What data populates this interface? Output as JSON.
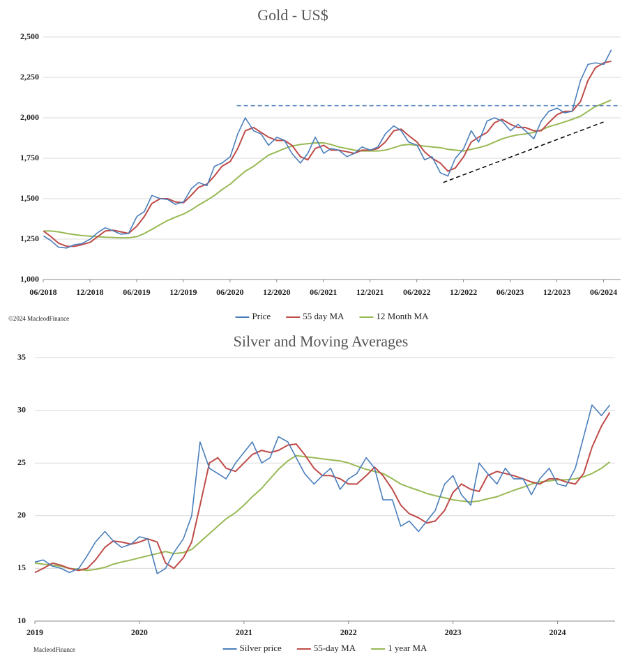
{
  "chart_data": [
    {
      "type": "line",
      "title": "Gold - US$",
      "source": "©2024 MacleodFinance",
      "x": [
        2018.42,
        2018.5,
        2018.58,
        2018.67,
        2018.75,
        2018.83,
        2018.92,
        2019,
        2019.08,
        2019.17,
        2019.25,
        2019.33,
        2019.42,
        2019.5,
        2019.58,
        2019.67,
        2019.75,
        2019.83,
        2019.92,
        2020,
        2020.08,
        2020.17,
        2020.25,
        2020.33,
        2020.42,
        2020.5,
        2020.58,
        2020.67,
        2020.75,
        2020.83,
        2020.92,
        2021,
        2021.08,
        2021.17,
        2021.25,
        2021.33,
        2021.42,
        2021.5,
        2021.58,
        2021.67,
        2021.75,
        2021.83,
        2021.92,
        2022,
        2022.08,
        2022.17,
        2022.25,
        2022.33,
        2022.42,
        2022.5,
        2022.58,
        2022.67,
        2022.75,
        2022.83,
        2022.92,
        2023,
        2023.08,
        2023.17,
        2023.25,
        2023.33,
        2023.42,
        2023.5,
        2023.58,
        2023.67,
        2023.75,
        2023.83,
        2023.92,
        2024,
        2024.08,
        2024.17,
        2024.25,
        2024.33,
        2024.42,
        2024.5
      ],
      "series": [
        {
          "name": "Price",
          "color": "#4a7ebb",
          "values": [
            1270,
            1240,
            1200,
            1195,
            1215,
            1222,
            1250,
            1290,
            1320,
            1300,
            1280,
            1285,
            1390,
            1420,
            1520,
            1500,
            1495,
            1465,
            1480,
            1560,
            1600,
            1580,
            1700,
            1720,
            1760,
            1900,
            2000,
            1920,
            1900,
            1830,
            1880,
            1860,
            1780,
            1720,
            1780,
            1880,
            1780,
            1810,
            1800,
            1760,
            1780,
            1820,
            1800,
            1820,
            1900,
            1950,
            1920,
            1850,
            1830,
            1740,
            1760,
            1660,
            1640,
            1750,
            1810,
            1920,
            1850,
            1980,
            2000,
            1980,
            1920,
            1960,
            1920,
            1870,
            1980,
            2040,
            2060,
            2030,
            2040,
            2230,
            2330,
            2340,
            2330,
            2420
          ]
        },
        {
          "name": "55 day MA",
          "color": "#be4b48",
          "values": [
            1300,
            1265,
            1225,
            1205,
            1205,
            1215,
            1230,
            1265,
            1300,
            1305,
            1295,
            1285,
            1330,
            1390,
            1470,
            1500,
            1500,
            1480,
            1475,
            1520,
            1570,
            1590,
            1640,
            1700,
            1730,
            1810,
            1920,
            1940,
            1910,
            1880,
            1860,
            1860,
            1830,
            1760,
            1740,
            1810,
            1830,
            1800,
            1800,
            1790,
            1780,
            1800,
            1800,
            1810,
            1850,
            1920,
            1930,
            1890,
            1850,
            1790,
            1750,
            1720,
            1670,
            1690,
            1760,
            1850,
            1880,
            1910,
            1970,
            1990,
            1960,
            1940,
            1940,
            1920,
            1920,
            1970,
            2020,
            2040,
            2040,
            2100,
            2230,
            2310,
            2340,
            2350
          ]
        },
        {
          "name": "12 Month MA",
          "color": "#98b954",
          "values": [
            1300,
            1300,
            1295,
            1285,
            1278,
            1272,
            1268,
            1265,
            1262,
            1260,
            1258,
            1258,
            1265,
            1285,
            1310,
            1340,
            1365,
            1385,
            1405,
            1430,
            1460,
            1490,
            1520,
            1555,
            1590,
            1630,
            1670,
            1700,
            1735,
            1770,
            1790,
            1810,
            1825,
            1835,
            1840,
            1845,
            1845,
            1835,
            1820,
            1810,
            1800,
            1795,
            1795,
            1795,
            1800,
            1815,
            1830,
            1835,
            1830,
            1825,
            1820,
            1815,
            1805,
            1800,
            1795,
            1805,
            1815,
            1830,
            1850,
            1870,
            1885,
            1895,
            1900,
            1910,
            1925,
            1945,
            1960,
            1975,
            1990,
            2010,
            2040,
            2070,
            2090,
            2110
          ]
        }
      ],
      "xlim": [
        2018.417,
        2024.6
      ],
      "xticks": [
        {
          "value": 2018.417,
          "label": "06/2018"
        },
        {
          "value": 2018.917,
          "label": "12/2018"
        },
        {
          "value": 2019.417,
          "label": "06/2019"
        },
        {
          "value": 2019.917,
          "label": "12/2019"
        },
        {
          "value": 2020.417,
          "label": "06/2020"
        },
        {
          "value": 2020.917,
          "label": "12/2020"
        },
        {
          "value": 2021.417,
          "label": "06/2021"
        },
        {
          "value": 2021.917,
          "label": "12/2021"
        },
        {
          "value": 2022.417,
          "label": "06/2022"
        },
        {
          "value": 2022.917,
          "label": "12/2022"
        },
        {
          "value": 2023.417,
          "label": "06/2023"
        },
        {
          "value": 2023.917,
          "label": "12/2023"
        },
        {
          "value": 2024.417,
          "label": "06/2024"
        }
      ],
      "ylim": [
        1000,
        2500
      ],
      "yticks": [
        {
          "value": 1000,
          "label": "1,000"
        },
        {
          "value": 1250,
          "label": "1,250"
        },
        {
          "value": 1500,
          "label": "1,500"
        },
        {
          "value": 1750,
          "label": "1,750"
        },
        {
          "value": 2000,
          "label": "2,000"
        },
        {
          "value": 2250,
          "label": "2,250"
        },
        {
          "value": 2500,
          "label": "2,500"
        }
      ],
      "grid": true,
      "reference_lines": [
        {
          "color": "#4a7ebb",
          "x": [
            2020.49,
            2024.6
          ],
          "y": [
            2075,
            2075
          ]
        },
        {
          "color": "#000000",
          "x": [
            2022.7,
            2024.417
          ],
          "y": [
            1600,
            1974
          ]
        }
      ]
    },
    {
      "type": "line",
      "title": "Silver and Moving Averages",
      "source": "MacleodFinance",
      "x": [
        2019,
        2019.08,
        2019.17,
        2019.25,
        2019.33,
        2019.42,
        2019.5,
        2019.58,
        2019.67,
        2019.75,
        2019.83,
        2019.92,
        2020,
        2020.08,
        2020.17,
        2020.25,
        2020.33,
        2020.42,
        2020.5,
        2020.58,
        2020.67,
        2020.75,
        2020.83,
        2020.92,
        2021,
        2021.08,
        2021.17,
        2021.25,
        2021.33,
        2021.42,
        2021.5,
        2021.58,
        2021.67,
        2021.75,
        2021.83,
        2021.92,
        2022,
        2022.08,
        2022.17,
        2022.25,
        2022.33,
        2022.42,
        2022.5,
        2022.58,
        2022.67,
        2022.75,
        2022.83,
        2022.92,
        2023,
        2023.08,
        2023.17,
        2023.25,
        2023.33,
        2023.42,
        2023.5,
        2023.58,
        2023.67,
        2023.75,
        2023.83,
        2023.92,
        2024,
        2024.08,
        2024.17,
        2024.25,
        2024.33,
        2024.42,
        2024.5
      ],
      "series": [
        {
          "name": "Silver price",
          "color": "#4a7ebb",
          "values": [
            15.6,
            15.8,
            15.2,
            15.0,
            14.6,
            15.0,
            16.2,
            17.5,
            18.5,
            17.6,
            17.0,
            17.3,
            18.0,
            17.8,
            14.5,
            15.0,
            16.5,
            17.8,
            20.0,
            27.0,
            24.5,
            24.0,
            23.5,
            25.0,
            26.0,
            27.0,
            25.0,
            25.5,
            27.5,
            27.0,
            25.5,
            24.0,
            23.0,
            23.8,
            24.5,
            22.5,
            23.5,
            24.0,
            25.5,
            24.5,
            21.5,
            21.5,
            19.0,
            19.5,
            18.5,
            19.5,
            20.5,
            23.0,
            23.8,
            22.0,
            21.0,
            25.0,
            24.0,
            23.0,
            24.5,
            23.5,
            23.5,
            22.0,
            23.5,
            24.5,
            23.0,
            22.8,
            24.5,
            27.5,
            30.5,
            29.5,
            30.5
          ]
        },
        {
          "name": "55-day MA",
          "color": "#be4b48",
          "values": [
            14.6,
            15.0,
            15.5,
            15.3,
            15.0,
            14.8,
            15.0,
            15.8,
            17.0,
            17.6,
            17.5,
            17.3,
            17.5,
            17.8,
            17.5,
            15.5,
            15.0,
            16.0,
            17.5,
            21.0,
            25.0,
            25.5,
            24.5,
            24.2,
            25.0,
            25.8,
            26.2,
            26.0,
            26.2,
            26.7,
            26.8,
            25.8,
            24.5,
            23.8,
            23.8,
            23.5,
            23.0,
            23.0,
            23.8,
            24.6,
            23.8,
            22.5,
            21.0,
            20.2,
            19.8,
            19.3,
            19.5,
            20.5,
            22.2,
            23.0,
            22.5,
            22.3,
            23.8,
            24.2,
            24.0,
            23.8,
            23.5,
            23.2,
            23.0,
            23.5,
            23.5,
            23.2,
            23.0,
            24.0,
            26.5,
            28.5,
            29.8
          ]
        },
        {
          "name": "1 year MA",
          "color": "#98b954",
          "values": [
            15.5,
            15.4,
            15.3,
            15.2,
            15.0,
            14.9,
            14.8,
            14.9,
            15.1,
            15.4,
            15.6,
            15.8,
            16.0,
            16.2,
            16.4,
            16.6,
            16.4,
            16.5,
            16.8,
            17.5,
            18.3,
            19.0,
            19.7,
            20.3,
            21.0,
            21.8,
            22.6,
            23.5,
            24.4,
            25.2,
            25.7,
            25.6,
            25.5,
            25.4,
            25.3,
            25.2,
            25.0,
            24.7,
            24.4,
            24.2,
            24.0,
            23.5,
            23.0,
            22.7,
            22.4,
            22.1,
            21.9,
            21.7,
            21.5,
            21.4,
            21.3,
            21.4,
            21.6,
            21.8,
            22.1,
            22.4,
            22.7,
            23.0,
            23.2,
            23.3,
            23.4,
            23.4,
            23.5,
            23.7,
            24.0,
            24.5,
            25.1
          ]
        }
      ],
      "xlim": [
        2019,
        2024.55
      ],
      "xticks": [
        2019,
        2020,
        2021,
        2022,
        2023,
        2024
      ],
      "ylim": [
        10,
        35
      ],
      "yticks": [
        10,
        15,
        20,
        25,
        30,
        35
      ],
      "grid": true
    }
  ]
}
